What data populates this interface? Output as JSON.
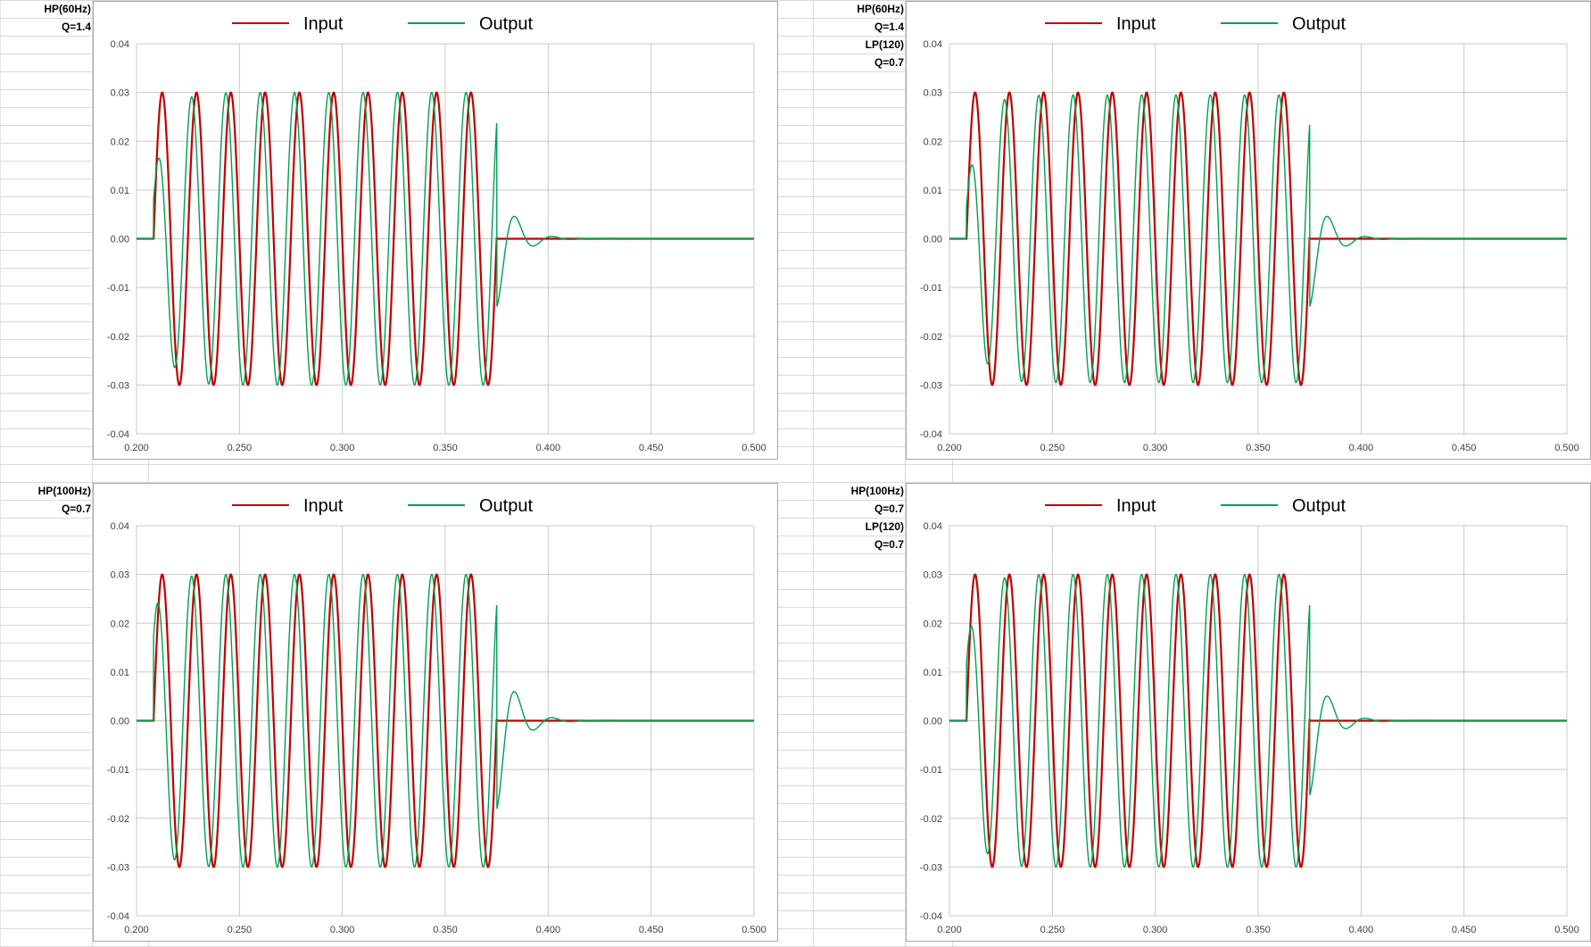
{
  "sheet": {
    "panels": [
      {
        "notes": [
          "HP(60Hz)",
          "Q=1.4",
          "",
          ""
        ]
      },
      {
        "notes": [
          "HP(60Hz)",
          "Q=1.4",
          "LP(120)",
          "Q=0.7"
        ]
      },
      {
        "notes": [
          "HP(100Hz)",
          "Q=0.7",
          "",
          ""
        ]
      },
      {
        "notes": [
          "HP(100Hz)",
          "Q=0.7",
          "LP(120)",
          "Q=0.7"
        ]
      }
    ]
  },
  "colors": {
    "input": "#c00000",
    "output": "#00a050",
    "grid": "#c8c8c8",
    "axis_text": "#404040"
  },
  "chart_data": [
    {
      "type": "line",
      "legend_position": "top",
      "grid": true,
      "xlim": [
        0.2,
        0.5
      ],
      "ylim": [
        -0.04,
        0.04
      ],
      "x_ticks": [
        "0.200",
        "0.250",
        "0.300",
        "0.350",
        "0.400",
        "0.450",
        "0.500"
      ],
      "y_ticks": [
        "0.04",
        "0.03",
        "0.02",
        "0.01",
        "0.00",
        "-0.01",
        "-0.02",
        "-0.03",
        "-0.04"
      ],
      "signal": {
        "amplitude": 0.03,
        "frequency_hz": 60,
        "start": 0.2083,
        "end": 0.375
      },
      "series": [
        {
          "name": "Input",
          "values_note": "60 Hz sine burst"
        },
        {
          "name": "Output",
          "values": {
            "first_peak": 0.0105,
            "second_peak": 0.0265,
            "steady_amplitude": 0.03,
            "post_trough": -0.0123,
            "post_peak": 0.0035
          }
        }
      ]
    },
    {
      "type": "line",
      "legend_position": "top",
      "grid": true,
      "xlim": [
        0.2,
        0.5
      ],
      "ylim": [
        -0.04,
        0.04
      ],
      "x_ticks": [
        "0.200",
        "0.250",
        "0.300",
        "0.350",
        "0.400",
        "0.450",
        "0.500"
      ],
      "y_ticks": [
        "0.04",
        "0.03",
        "0.02",
        "0.01",
        "0.00",
        "-0.01",
        "-0.02",
        "-0.03",
        "-0.04"
      ],
      "signal": {
        "amplitude": 0.03,
        "frequency_hz": 60,
        "start": 0.2083,
        "end": 0.375
      },
      "series": [
        {
          "name": "Input",
          "values_note": "60 Hz sine burst"
        },
        {
          "name": "Output",
          "values": {
            "first_peak": 0.0085,
            "second_peak": 0.026,
            "steady_amplitude": 0.0295,
            "post_trough": -0.0123,
            "post_peak": 0.0038
          }
        }
      ]
    },
    {
      "type": "line",
      "legend_position": "top",
      "grid": true,
      "xlim": [
        0.2,
        0.5
      ],
      "ylim": [
        -0.04,
        0.04
      ],
      "x_ticks": [
        "0.200",
        "0.250",
        "0.300",
        "0.350",
        "0.400",
        "0.450",
        "0.500"
      ],
      "y_ticks": [
        "0.04",
        "0.03",
        "0.02",
        "0.01",
        "0.00",
        "-0.01",
        "-0.02",
        "-0.03",
        "-0.04"
      ],
      "signal": {
        "amplitude": 0.03,
        "frequency_hz": 60,
        "start": 0.2083,
        "end": 0.375
      },
      "series": [
        {
          "name": "Input",
          "values_note": "60 Hz sine burst"
        },
        {
          "name": "Output",
          "values": {
            "first_peak": 0.022,
            "second_peak": 0.03,
            "steady_amplitude": 0.03,
            "post_trough": -0.016,
            "post_peak": 0.0008
          }
        }
      ]
    },
    {
      "type": "line",
      "legend_position": "top",
      "grid": true,
      "xlim": [
        0.2,
        0.5
      ],
      "ylim": [
        -0.04,
        0.04
      ],
      "x_ticks": [
        "0.200",
        "0.250",
        "0.300",
        "0.350",
        "0.400",
        "0.450",
        "0.500"
      ],
      "y_ticks": [
        "0.04",
        "0.03",
        "0.02",
        "0.01",
        "0.00",
        "-0.01",
        "-0.02",
        "-0.03",
        "-0.04"
      ],
      "signal": {
        "amplitude": 0.03,
        "frequency_hz": 60,
        "start": 0.2083,
        "end": 0.375
      },
      "series": [
        {
          "name": "Input",
          "values_note": "60 Hz sine burst"
        },
        {
          "name": "Output",
          "values": {
            "first_peak": 0.015,
            "second_peak": 0.03,
            "steady_amplitude": 0.03,
            "post_trough": -0.0135,
            "post_peak": 0.0012
          }
        }
      ]
    }
  ]
}
